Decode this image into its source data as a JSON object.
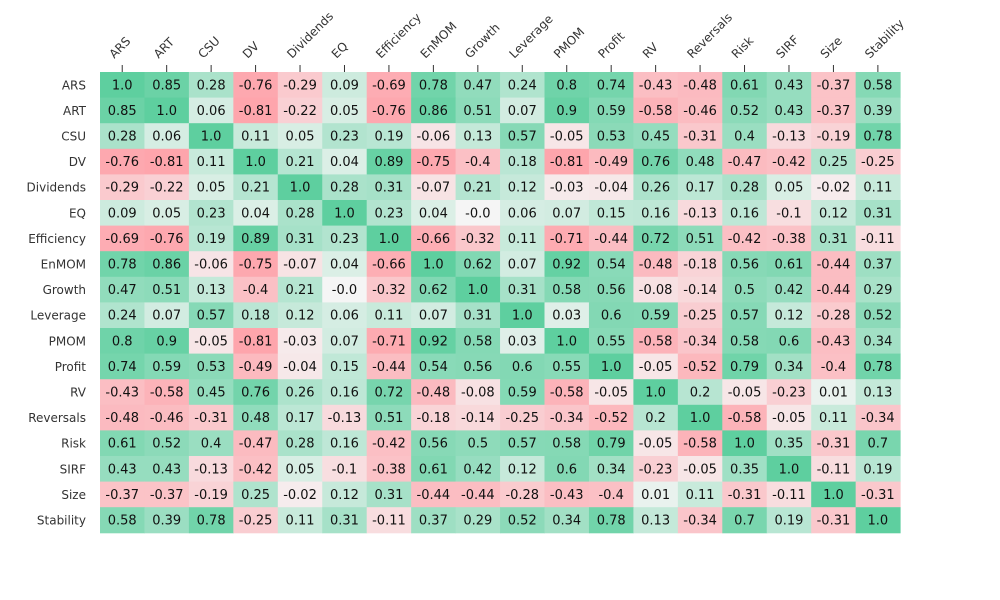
{
  "chart_data": {
    "type": "heatmap",
    "title": "",
    "xlabel": "",
    "ylabel": "",
    "colors": {
      "negative": "#ff9aa2",
      "neutral": "#f5f5f5",
      "positive": "#5ecf9f",
      "grid_mid_light": "#e9fbf1"
    },
    "value_range": [
      -1,
      1
    ],
    "labels": [
      "ARS",
      "ART",
      "CSU",
      "DV",
      "Dividends",
      "EQ",
      "Efficiency",
      "EnMOM",
      "Growth",
      "Leverage",
      "PMOM",
      "Profit",
      "RV",
      "Reversals",
      "Risk",
      "SIRF",
      "Size",
      "Stability"
    ],
    "cells": [
      [
        "1.0",
        "0.85",
        "0.28",
        "-0.76",
        "-0.29",
        "0.09",
        "-0.69",
        "0.78",
        "0.47",
        "0.24",
        "0.8",
        "0.74",
        "-0.43",
        "-0.48",
        "0.61",
        "0.43",
        "-0.37",
        "0.58"
      ],
      [
        "0.85",
        "1.0",
        "0.06",
        "-0.81",
        "-0.22",
        "0.05",
        "-0.76",
        "0.86",
        "0.51",
        "0.07",
        "0.9",
        "0.59",
        "-0.58",
        "-0.46",
        "0.52",
        "0.43",
        "-0.37",
        "0.39"
      ],
      [
        "0.28",
        "0.06",
        "1.0",
        "0.11",
        "0.05",
        "0.23",
        "0.19",
        "-0.06",
        "0.13",
        "0.57",
        "-0.05",
        "0.53",
        "0.45",
        "-0.31",
        "0.4",
        "-0.13",
        "-0.19",
        "0.78"
      ],
      [
        "-0.76",
        "-0.81",
        "0.11",
        "1.0",
        "0.21",
        "0.04",
        "0.89",
        "-0.75",
        "-0.4",
        "0.18",
        "-0.81",
        "-0.49",
        "0.76",
        "0.48",
        "-0.47",
        "-0.42",
        "0.25",
        "-0.25"
      ],
      [
        "-0.29",
        "-0.22",
        "0.05",
        "0.21",
        "1.0",
        "0.28",
        "0.31",
        "-0.07",
        "0.21",
        "0.12",
        "-0.03",
        "-0.04",
        "0.26",
        "0.17",
        "0.28",
        "0.05",
        "-0.02",
        "0.11"
      ],
      [
        "0.09",
        "0.05",
        "0.23",
        "0.04",
        "0.28",
        "1.0",
        "0.23",
        "0.04",
        "-0.0",
        "0.06",
        "0.07",
        "0.15",
        "0.16",
        "-0.13",
        "0.16",
        "-0.1",
        "0.12",
        "0.31"
      ],
      [
        "-0.69",
        "-0.76",
        "0.19",
        "0.89",
        "0.31",
        "0.23",
        "1.0",
        "-0.66",
        "-0.32",
        "0.11",
        "-0.71",
        "-0.44",
        "0.72",
        "0.51",
        "-0.42",
        "-0.38",
        "0.31",
        "-0.11"
      ],
      [
        "0.78",
        "0.86",
        "-0.06",
        "-0.75",
        "-0.07",
        "0.04",
        "-0.66",
        "1.0",
        "0.62",
        "0.07",
        "0.92",
        "0.54",
        "-0.48",
        "-0.18",
        "0.56",
        "0.61",
        "-0.44",
        "0.37"
      ],
      [
        "0.47",
        "0.51",
        "0.13",
        "-0.4",
        "0.21",
        "-0.0",
        "-0.32",
        "0.62",
        "1.0",
        "0.31",
        "0.58",
        "0.56",
        "-0.08",
        "-0.14",
        "0.5",
        "0.42",
        "-0.44",
        "0.29"
      ],
      [
        "0.24",
        "0.07",
        "0.57",
        "0.18",
        "0.12",
        "0.06",
        "0.11",
        "0.07",
        "0.31",
        "1.0",
        "0.03",
        "0.6",
        "0.59",
        "-0.25",
        "0.57",
        "0.12",
        "-0.28",
        "0.52"
      ],
      [
        "0.8",
        "0.9",
        "-0.05",
        "-0.81",
        "-0.03",
        "0.07",
        "-0.71",
        "0.92",
        "0.58",
        "0.03",
        "1.0",
        "0.55",
        "-0.58",
        "-0.34",
        "0.58",
        "0.6",
        "-0.43",
        "0.34"
      ],
      [
        "0.74",
        "0.59",
        "0.53",
        "-0.49",
        "-0.04",
        "0.15",
        "-0.44",
        "0.54",
        "0.56",
        "0.6",
        "0.55",
        "1.0",
        "-0.05",
        "-0.52",
        "0.79",
        "0.34",
        "-0.4",
        "0.78"
      ],
      [
        "-0.43",
        "-0.58",
        "0.45",
        "0.76",
        "0.26",
        "0.16",
        "0.72",
        "-0.48",
        "-0.08",
        "0.59",
        "-0.58",
        "-0.05",
        "1.0",
        "0.2",
        "-0.05",
        "-0.23",
        "0.01",
        "0.13"
      ],
      [
        "-0.48",
        "-0.46",
        "-0.31",
        "0.48",
        "0.17",
        "-0.13",
        "0.51",
        "-0.18",
        "-0.14",
        "-0.25",
        "-0.34",
        "-0.52",
        "0.2",
        "1.0",
        "-0.58",
        "-0.05",
        "0.11",
        "-0.34"
      ],
      [
        "0.61",
        "0.52",
        "0.4",
        "-0.47",
        "0.28",
        "0.16",
        "-0.42",
        "0.56",
        "0.5",
        "0.57",
        "0.58",
        "0.79",
        "-0.05",
        "-0.58",
        "1.0",
        "0.35",
        "-0.31",
        "0.7"
      ],
      [
        "0.43",
        "0.43",
        "-0.13",
        "-0.42",
        "0.05",
        "-0.1",
        "-0.38",
        "0.61",
        "0.42",
        "0.12",
        "0.6",
        "0.34",
        "-0.23",
        "-0.05",
        "0.35",
        "1.0",
        "-0.11",
        "0.19"
      ],
      [
        "-0.37",
        "-0.37",
        "-0.19",
        "0.25",
        "-0.02",
        "0.12",
        "0.31",
        "-0.44",
        "-0.44",
        "-0.28",
        "-0.43",
        "-0.4",
        "0.01",
        "0.11",
        "-0.31",
        "-0.11",
        "1.0",
        "-0.31"
      ],
      [
        "0.58",
        "0.39",
        "0.78",
        "-0.25",
        "0.11",
        "0.31",
        "-0.11",
        "0.37",
        "0.29",
        "0.52",
        "0.34",
        "0.78",
        "0.13",
        "-0.34",
        "0.7",
        "0.19",
        "-0.31",
        "1.0"
      ]
    ]
  }
}
